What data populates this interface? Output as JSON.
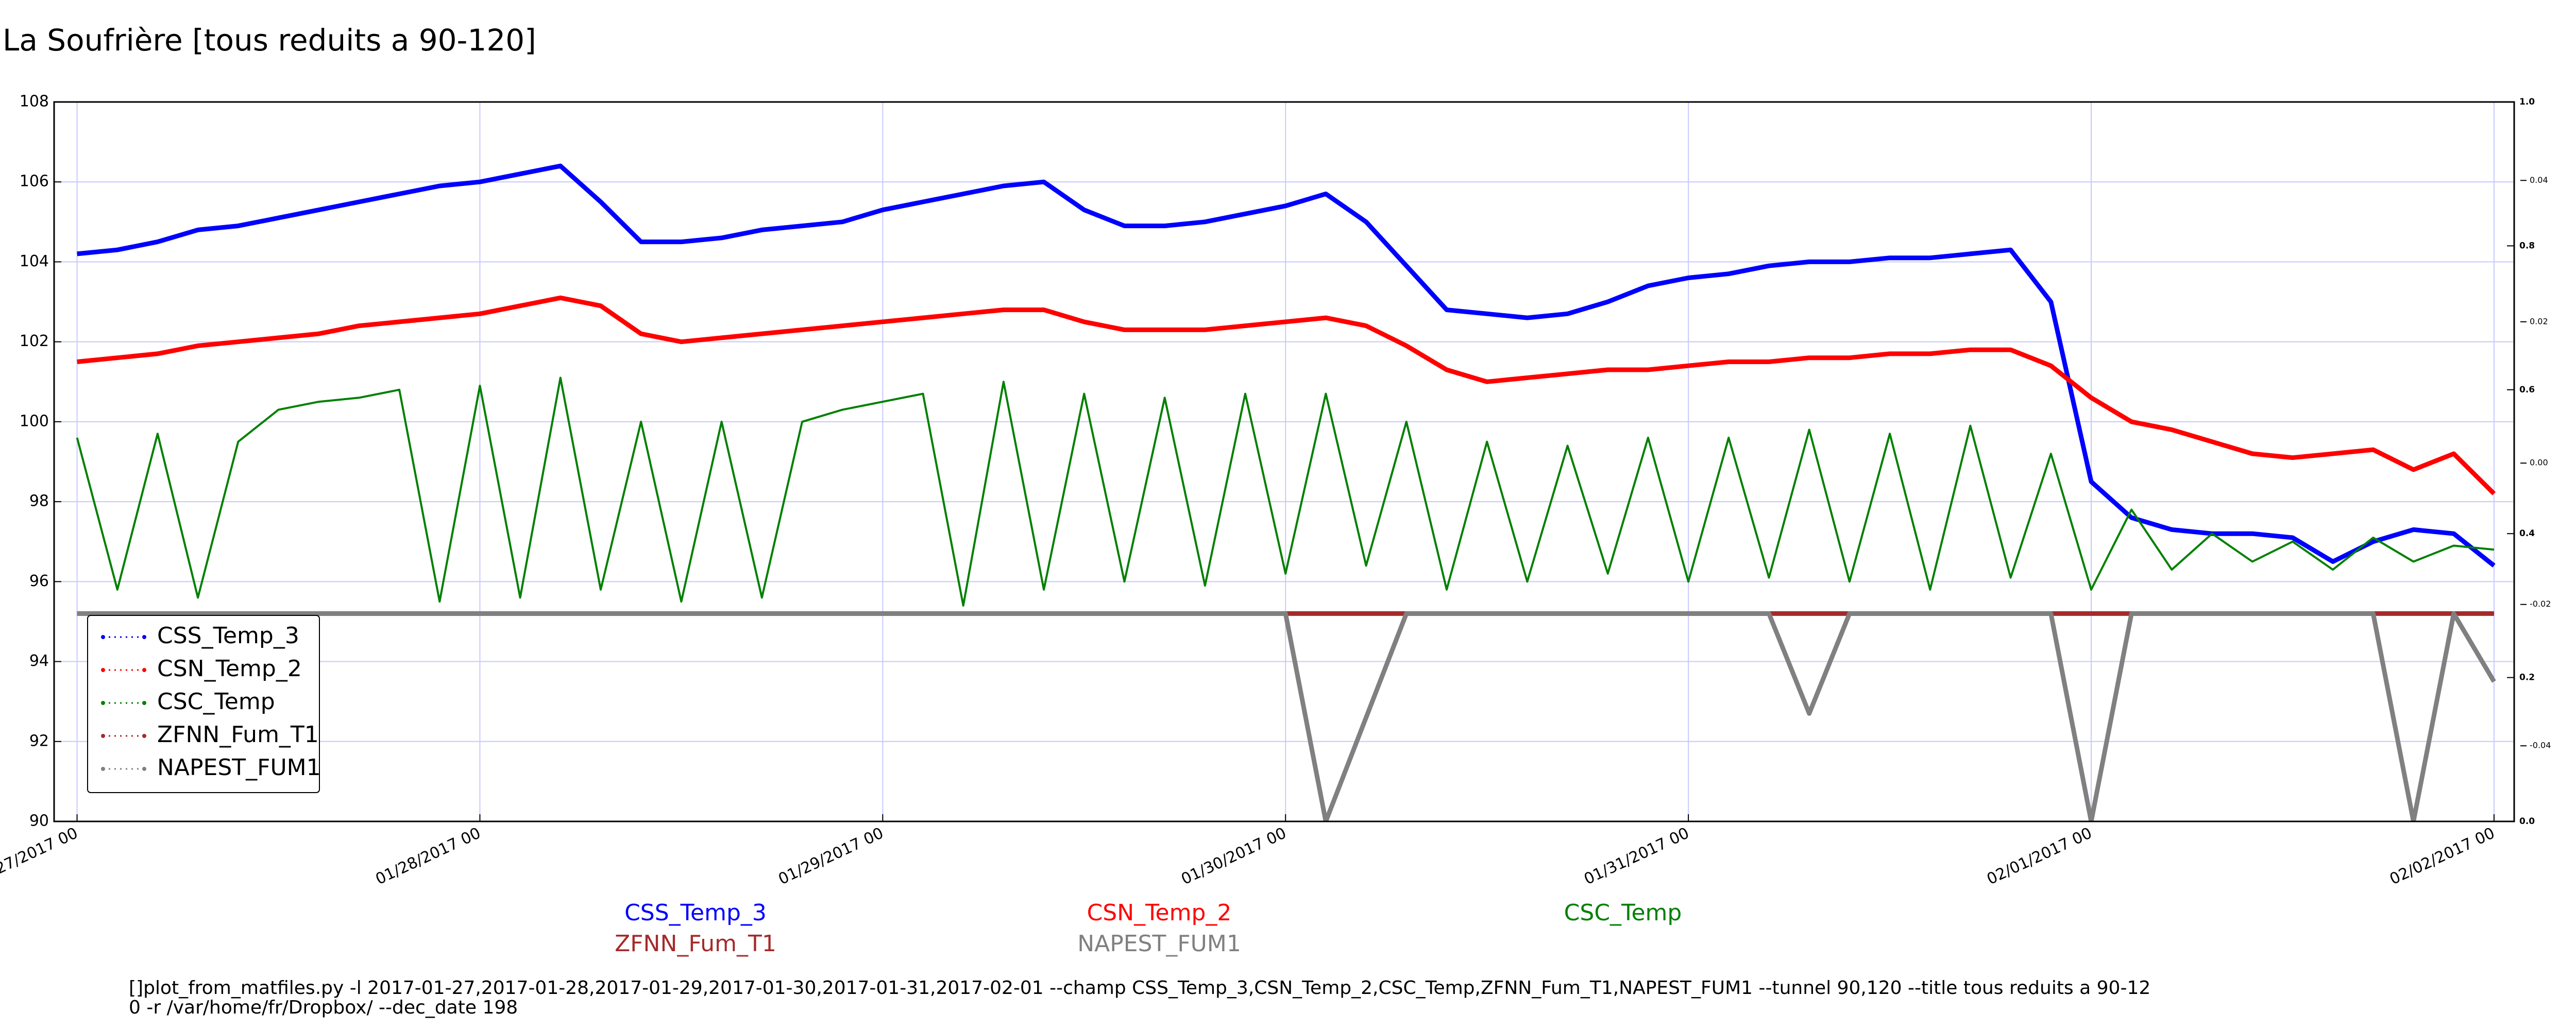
{
  "chart_data": {
    "type": "line",
    "title": "La Soufrière [tous reduits a 90-120]",
    "x": [
      0,
      0.1,
      0.2,
      0.3,
      0.4,
      0.5,
      0.6,
      0.7,
      0.8,
      0.9,
      1.0,
      1.1,
      1.2,
      1.3,
      1.4,
      1.5,
      1.6,
      1.7,
      1.8,
      1.9,
      2.0,
      2.1,
      2.2,
      2.3,
      2.4,
      2.5,
      2.6,
      2.7,
      2.8,
      2.9,
      3.0,
      3.1,
      3.2,
      3.3,
      3.4,
      3.5,
      3.6,
      3.7,
      3.8,
      3.9,
      4.0,
      4.1,
      4.2,
      4.3,
      4.4,
      4.5,
      4.6,
      4.7,
      4.8,
      4.9,
      5.0,
      5.1,
      5.2,
      5.3,
      5.4,
      5.5,
      5.6,
      5.7,
      5.8,
      5.9,
      6.0
    ],
    "series": [
      {
        "name": "CSS_Temp_3",
        "color": "#0000ff",
        "values": [
          104.2,
          104.3,
          104.5,
          104.8,
          104.9,
          105.1,
          105.3,
          105.5,
          105.7,
          105.9,
          106.0,
          106.2,
          106.4,
          105.5,
          104.5,
          104.5,
          104.6,
          104.8,
          104.9,
          105.0,
          105.3,
          105.5,
          105.7,
          105.9,
          106.0,
          105.3,
          104.9,
          104.9,
          105.0,
          105.2,
          105.4,
          105.7,
          105.0,
          103.9,
          102.8,
          102.7,
          102.6,
          102.7,
          103.0,
          103.4,
          103.6,
          103.7,
          103.9,
          104.0,
          104.0,
          104.1,
          104.1,
          104.2,
          104.3,
          103.0,
          98.5,
          97.6,
          97.3,
          97.2,
          97.2,
          97.1,
          96.5,
          97.0,
          97.3,
          97.2,
          96.4
        ]
      },
      {
        "name": "CSN_Temp_2",
        "color": "#ff0000",
        "values": [
          101.5,
          101.6,
          101.7,
          101.9,
          102.0,
          102.1,
          102.2,
          102.4,
          102.5,
          102.6,
          102.7,
          102.9,
          103.1,
          102.9,
          102.2,
          102.0,
          102.1,
          102.2,
          102.3,
          102.4,
          102.5,
          102.6,
          102.7,
          102.8,
          102.8,
          102.5,
          102.3,
          102.3,
          102.3,
          102.4,
          102.5,
          102.6,
          102.4,
          101.9,
          101.3,
          101.0,
          101.1,
          101.2,
          101.3,
          101.3,
          101.4,
          101.5,
          101.5,
          101.6,
          101.6,
          101.7,
          101.7,
          101.8,
          101.8,
          101.4,
          100.6,
          100.0,
          99.8,
          99.5,
          99.2,
          99.1,
          99.2,
          99.3,
          98.8,
          99.2,
          98.2
        ]
      },
      {
        "name": "CSC_Temp",
        "color": "#008000",
        "values": [
          99.6,
          95.8,
          99.7,
          95.6,
          99.5,
          100.3,
          100.5,
          100.6,
          100.8,
          95.5,
          100.9,
          95.6,
          101.1,
          95.8,
          100.0,
          95.5,
          100.0,
          95.6,
          100.0,
          100.3,
          100.5,
          100.7,
          95.4,
          101.0,
          95.8,
          100.7,
          96.0,
          100.6,
          95.9,
          100.7,
          96.2,
          100.7,
          96.4,
          100.0,
          95.8,
          99.5,
          96.0,
          99.4,
          96.2,
          99.6,
          96.0,
          99.6,
          96.1,
          99.8,
          96.0,
          99.7,
          95.8,
          99.9,
          96.1,
          99.2,
          95.8,
          97.8,
          96.3,
          97.2,
          96.5,
          97.0,
          96.3,
          97.1,
          96.5,
          96.9,
          96.8
        ]
      },
      {
        "name": "ZFNN_Fum_T1",
        "color": "#a52a2a",
        "values": [
          95.2,
          95.2,
          95.2,
          95.2,
          95.2,
          95.2,
          95.2,
          95.2,
          95.2,
          95.2,
          95.2,
          95.2,
          95.2,
          95.2,
          95.2,
          95.2,
          95.2,
          95.2,
          95.2,
          95.2,
          95.2,
          95.2,
          95.2,
          95.2,
          95.2,
          95.2,
          95.2,
          95.2,
          95.2,
          95.2,
          95.2,
          95.2,
          95.2,
          95.2,
          95.2,
          95.2,
          95.2,
          95.2,
          95.2,
          95.2,
          95.2,
          95.2,
          95.2,
          95.2,
          95.2,
          95.2,
          95.2,
          95.2,
          95.2,
          95.2,
          95.2,
          95.2,
          95.2,
          95.2,
          95.2,
          95.2,
          95.2,
          95.2,
          95.2,
          95.2,
          95.2
        ]
      },
      {
        "name": "NAPEST_FUM1",
        "color": "#808080",
        "values": [
          95.2,
          95.2,
          95.2,
          95.2,
          95.2,
          95.2,
          95.2,
          95.2,
          95.2,
          95.2,
          95.2,
          95.2,
          95.2,
          95.2,
          95.2,
          95.2,
          95.2,
          95.2,
          95.2,
          95.2,
          95.2,
          95.2,
          95.2,
          95.2,
          95.2,
          95.2,
          95.2,
          95.2,
          95.2,
          95.2,
          95.2,
          90.0,
          92.6,
          95.2,
          95.2,
          95.2,
          95.2,
          95.2,
          95.2,
          95.2,
          95.2,
          95.2,
          95.2,
          92.7,
          95.2,
          95.2,
          95.2,
          95.2,
          95.2,
          95.2,
          90.0,
          95.2,
          95.2,
          95.2,
          95.2,
          95.2,
          95.2,
          95.2,
          90.0,
          95.2,
          93.5
        ]
      }
    ],
    "xlim": [
      -0.057,
      6.05
    ],
    "xticks": [
      {
        "value": 0,
        "label": "01/27/2017 00"
      },
      {
        "value": 1,
        "label": "01/28/2017 00"
      },
      {
        "value": 2,
        "label": "01/29/2017 00"
      },
      {
        "value": 3,
        "label": "01/30/2017 00"
      },
      {
        "value": 4,
        "label": "01/31/2017 00"
      },
      {
        "value": 5,
        "label": "02/01/2017 00"
      },
      {
        "value": 6,
        "label": "02/02/2017 00"
      }
    ],
    "ylim": [
      90,
      108
    ],
    "yticks": [
      90,
      92,
      94,
      96,
      98,
      100,
      102,
      104,
      106,
      108
    ],
    "y2lim": [
      0,
      1
    ],
    "y2ticks": [
      {
        "value": 0,
        "label": "0.0"
      },
      {
        "value": 0.2,
        "label": "0.2"
      },
      {
        "value": 0.4,
        "label": "0.4"
      },
      {
        "value": 0.6,
        "label": "0.6"
      },
      {
        "value": 0.8,
        "label": "0.8"
      },
      {
        "value": 1,
        "label": "1.0"
      }
    ],
    "y3lim": [
      -0.0507,
      0.0511
    ],
    "y3ticks": [
      -0.04,
      -0.02,
      {
        "value": 0,
        "label": "0.00"
      },
      0.02,
      0.04
    ],
    "grid": true,
    "legend": "lower left",
    "command": [
      "[]plot_from_matfiles.py -l 2017-01-27,2017-01-28,2017-01-29,2017-01-30,2017-01-31,2017-02-01 --champ CSS_Temp_3,CSN_Temp_2,CSC_Temp,ZFNN_Fum_T1,NAPEST_FUM1 --tunnel 90,120 --title tous reduits a 90-12",
      "0 -r /var/home/fr/Dropbox/ --dec_date 198"
    ]
  }
}
